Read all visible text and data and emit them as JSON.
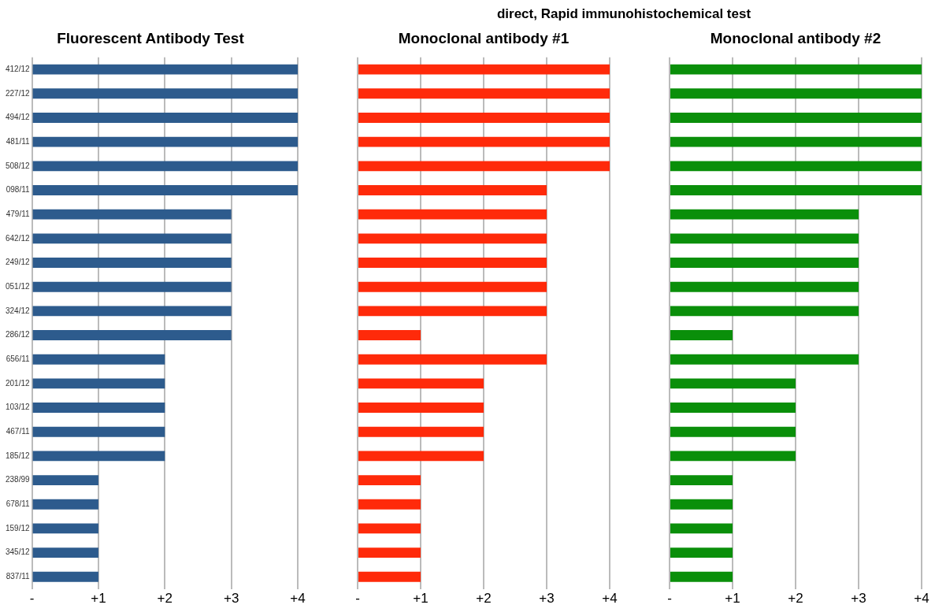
{
  "chart_data": [
    {
      "type": "bar",
      "orientation": "horizontal",
      "title": "Fluorescent Antibody Test",
      "categories": [
        "412/12",
        "227/12",
        "494/12",
        "481/11",
        "508/12",
        "098/11",
        "479/11",
        "642/12",
        "249/12",
        "051/12",
        "324/12",
        "286/12",
        "656/11",
        "201/12",
        "103/12",
        "467/11",
        "185/12",
        "238/99",
        "678/11",
        "159/12",
        "345/12",
        "837/11"
      ],
      "values": [
        4,
        4,
        4,
        4,
        4,
        4,
        3,
        3,
        3,
        3,
        3,
        3,
        2,
        2,
        2,
        2,
        2,
        1,
        1,
        1,
        1,
        1
      ],
      "color": "#2d5b8d",
      "xlim": [
        0,
        4
      ],
      "xticks": [
        {
          "value": 0,
          "label": "-"
        },
        {
          "value": 1,
          "label": "+1"
        },
        {
          "value": 2,
          "label": "+2"
        },
        {
          "value": 3,
          "label": "+3"
        },
        {
          "value": 4,
          "label": "+4"
        }
      ],
      "grid": "x"
    },
    {
      "type": "bar",
      "orientation": "horizontal",
      "subtitle": "direct, Rapid immunohistochemical test",
      "title": "Monoclonal antibody #1",
      "categories": [
        null,
        null,
        null,
        null,
        null,
        null,
        null,
        null,
        null,
        null,
        null,
        null,
        null,
        null,
        null,
        null,
        null,
        null,
        null,
        null,
        null,
        null
      ],
      "values": [
        4,
        4,
        4,
        4,
        4,
        3,
        3,
        3,
        3,
        3,
        3,
        1,
        3,
        2,
        2,
        2,
        2,
        1,
        1,
        1,
        1,
        1
      ],
      "color": "#ff2a0a",
      "xlim": [
        0,
        4
      ],
      "xticks": [
        {
          "value": 0,
          "label": "-"
        },
        {
          "value": 1,
          "label": "+1"
        },
        {
          "value": 2,
          "label": "+2"
        },
        {
          "value": 3,
          "label": "+3"
        },
        {
          "value": 4,
          "label": "+4"
        }
      ],
      "grid": "x",
      "tick_labels": "x"
    },
    {
      "type": "bar",
      "orientation": "horizontal",
      "title": "Monoclonal antibody #2",
      "categories": [
        null,
        null,
        null,
        null,
        null,
        null,
        null,
        null,
        null,
        null,
        null,
        null,
        null,
        null,
        null,
        null,
        null,
        null,
        null,
        null,
        null,
        null
      ],
      "values": [
        4,
        4,
        4,
        4,
        4,
        4,
        3,
        3,
        3,
        3,
        3,
        1,
        3,
        2,
        2,
        2,
        2,
        1,
        1,
        1,
        1,
        1
      ],
      "color": "#0a8f0a",
      "xlim": [
        0,
        4
      ],
      "xticks": [
        {
          "value": 0,
          "label": "-"
        },
        {
          "value": 1,
          "label": "+1"
        },
        {
          "value": 2,
          "label": "+2"
        },
        {
          "value": 3,
          "label": "+3"
        },
        {
          "value": 4,
          "label": "+4"
        }
      ],
      "grid": "x",
      "tick_labels": "x"
    }
  ]
}
